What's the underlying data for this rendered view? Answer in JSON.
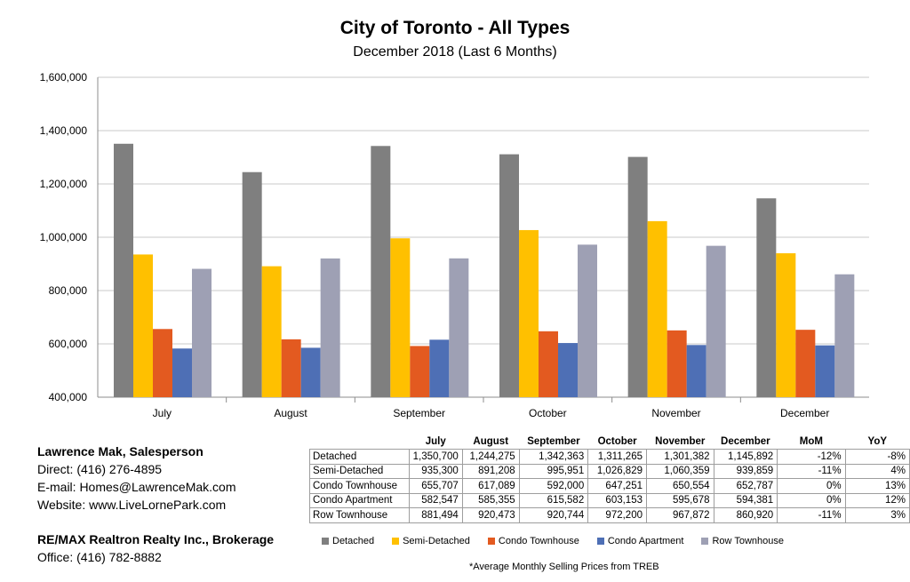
{
  "chart_data": {
    "type": "bar",
    "title": "City of Toronto - All Types",
    "subtitle": "December 2018 (Last 6 Months)",
    "categories": [
      "July",
      "August",
      "September",
      "October",
      "November",
      "December"
    ],
    "ylim": [
      400000,
      1600000
    ],
    "yticks": [
      "400,000",
      "600,000",
      "800,000",
      "1,000,000",
      "1,200,000",
      "1,400,000",
      "1,600,000"
    ],
    "ytick_values": [
      400000,
      600000,
      800000,
      1000000,
      1200000,
      1400000,
      1600000
    ],
    "grid": true,
    "legend_position": "bottom",
    "series": [
      {
        "name": "Detached",
        "color": "#7f7f7f",
        "values": [
          1350700,
          1244275,
          1342363,
          1311265,
          1301382,
          1145892
        ]
      },
      {
        "name": "Semi-Detached",
        "color": "#ffc000",
        "values": [
          935300,
          891208,
          995951,
          1026829,
          1060359,
          939859
        ]
      },
      {
        "name": "Condo Townhouse",
        "color": "#e35a20",
        "values": [
          655707,
          617089,
          592000,
          647251,
          650554,
          652787
        ]
      },
      {
        "name": "Condo Apartment",
        "color": "#4e6fb5",
        "values": [
          582547,
          585355,
          615582,
          603153,
          595678,
          594381
        ]
      },
      {
        "name": "Row Townhouse",
        "color": "#9ea0b4",
        "values": [
          881494,
          920473,
          920744,
          972200,
          967872,
          860920
        ]
      }
    ]
  },
  "table": {
    "headers": [
      "",
      "July",
      "August",
      "September",
      "October",
      "November",
      "December",
      "MoM",
      "YoY"
    ],
    "rows": [
      [
        "Detached",
        "1,350,700",
        "1,244,275",
        "1,342,363",
        "1,311,265",
        "1,301,382",
        "1,145,892",
        "-12%",
        "-8%"
      ],
      [
        "Semi-Detached",
        "935,300",
        "891,208",
        "995,951",
        "1,026,829",
        "1,060,359",
        "939,859",
        "-11%",
        "4%"
      ],
      [
        "Condo Townhouse",
        "655,707",
        "617,089",
        "592,000",
        "647,251",
        "650,554",
        "652,787",
        "0%",
        "13%"
      ],
      [
        "Condo Apartment",
        "582,547",
        "585,355",
        "615,582",
        "603,153",
        "595,678",
        "594,381",
        "0%",
        "12%"
      ],
      [
        "Row Townhouse",
        "881,494",
        "920,473",
        "920,744",
        "972,200",
        "967,872",
        "860,920",
        "-11%",
        "3%"
      ]
    ]
  },
  "contact": {
    "name": "Lawrence Mak, Salesperson",
    "direct": "Direct:  (416) 276-4895",
    "email": "E-mail:  Homes@LawrenceMak.com",
    "website": "Website: www.LiveLornePark.com",
    "brokerage": "RE/MAX Realtron Realty Inc., Brokerage",
    "office": "Office: (416) 782-8882"
  },
  "footnote": "*Average Monthly Selling Prices  from TREB"
}
